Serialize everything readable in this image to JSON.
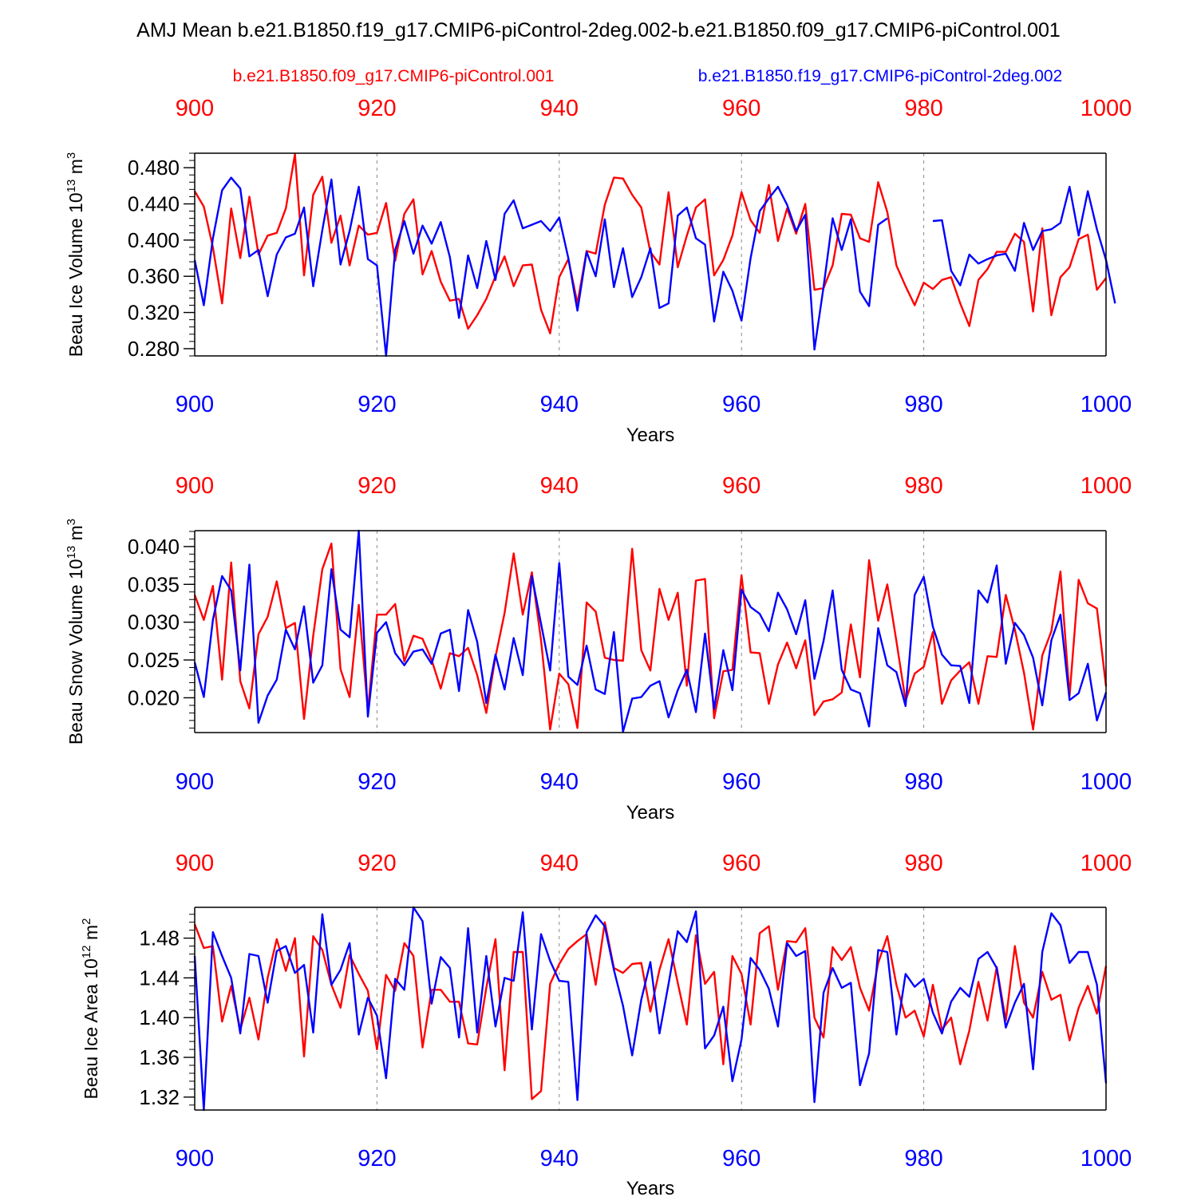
{
  "title": "AMJ Mean b.e21.B1850.f19_g17.CMIP6-piControl-2deg.002-b.e21.B1850.f09_g17.CMIP6-piControl.001",
  "legend": {
    "red_label": "b.e21.B1850.f09_g17.CMIP6-piControl.001",
    "blue_label": "b.e21.B1850.f19_g17.CMIP6-piControl-2deg.002"
  },
  "colors": {
    "red": "#ff0000",
    "blue": "#0000ff",
    "black": "#000000"
  },
  "chart_data": [
    {
      "type": "line",
      "ylabel": "Beau Ice Volume 10^13 m^3",
      "ylabel_main": "Beau Ice Volume 10",
      "ylabel_exp": "13",
      "ylabel_unit": "m",
      "ylabel_unit_exp": "3",
      "xlabel": "Years",
      "xlim": [
        900,
        1000
      ],
      "ylim": [
        0.272,
        0.496
      ],
      "x_ticks": [
        "900",
        "920",
        "940",
        "960",
        "980",
        "1000"
      ],
      "y_ticks": [
        "0.280",
        "0.320",
        "0.360",
        "0.400",
        "0.440",
        "0.480"
      ],
      "y_tick_values": [
        0.28,
        0.32,
        0.36,
        0.4,
        0.44,
        0.48
      ],
      "x_start": 900,
      "series": [
        {
          "name": "b.e21.B1850.f09_g17.CMIP6-piControl.001",
          "color": "red",
          "values": [
            0.454,
            0.437,
            0.392,
            0.33,
            0.435,
            0.38,
            0.448,
            0.384,
            0.405,
            0.408,
            0.435,
            0.495,
            0.361,
            0.45,
            0.47,
            0.397,
            0.427,
            0.372,
            0.416,
            0.406,
            0.408,
            0.441,
            0.377,
            0.429,
            0.445,
            0.362,
            0.388,
            0.354,
            0.333,
            0.335,
            0.302,
            0.317,
            0.335,
            0.36,
            0.382,
            0.349,
            0.372,
            0.373,
            0.323,
            0.297,
            0.359,
            0.379,
            0.33,
            0.388,
            0.385,
            0.439,
            0.469,
            0.468,
            0.45,
            0.436,
            0.387,
            0.373,
            0.453,
            0.37,
            0.405,
            0.436,
            0.445,
            0.361,
            0.378,
            0.405,
            0.453,
            0.422,
            0.408,
            0.461,
            0.399,
            0.435,
            0.407,
            0.44,
            0.345,
            0.347,
            0.372,
            0.429,
            0.428,
            0.402,
            0.398,
            0.464,
            0.431,
            0.372,
            0.349,
            0.328,
            0.353,
            0.346,
            0.356,
            0.359,
            0.33,
            0.305,
            0.356,
            0.368,
            0.387,
            0.387,
            0.407,
            0.398,
            0.321,
            0.413,
            0.317,
            0.359,
            0.37,
            0.401,
            0.406,
            0.345,
            0.358
          ]
        },
        {
          "name": "b.e21.B1850.f19_g17.CMIP6-piControl-2deg.002",
          "color": "blue",
          "values": [
            0.378,
            0.328,
            0.402,
            0.455,
            0.469,
            0.457,
            0.382,
            0.389,
            0.338,
            0.384,
            0.403,
            0.407,
            0.436,
            0.349,
            0.411,
            0.467,
            0.373,
            0.41,
            0.459,
            0.379,
            0.372,
            0.272,
            0.389,
            0.421,
            0.385,
            0.416,
            0.396,
            0.42,
            0.381,
            0.314,
            0.383,
            0.347,
            0.399,
            0.356,
            0.429,
            0.444,
            0.413,
            0.417,
            0.421,
            0.41,
            0.425,
            0.38,
            0.322,
            0.387,
            0.36,
            0.423,
            0.348,
            0.391,
            0.337,
            0.359,
            0.391,
            0.325,
            0.33,
            0.427,
            0.436,
            0.402,
            0.395,
            0.31,
            0.365,
            0.344,
            0.311,
            0.38,
            0.432,
            0.446,
            0.459,
            0.439,
            0.41,
            0.428,
            0.279,
            0.348,
            0.424,
            0.389,
            0.423,
            0.343,
            0.327,
            0.417,
            0.424,
            null,
            null,
            null,
            null,
            0.421,
            0.422,
            0.366,
            0.35,
            0.384,
            0.374,
            0.379,
            0.383,
            0.385,
            0.366,
            0.419,
            0.389,
            0.41,
            0.412,
            0.419,
            0.459,
            0.405,
            0.454,
            0.412,
            0.378,
            0.33
          ]
        }
      ]
    },
    {
      "type": "line",
      "ylabel": "Beau Snow Volume 10^13 m^3",
      "ylabel_main": "Beau Snow Volume 10",
      "ylabel_exp": "13",
      "ylabel_unit": "m",
      "ylabel_unit_exp": "3",
      "xlabel": "Years",
      "xlim": [
        900,
        1000
      ],
      "ylim": [
        0.0154,
        0.0421
      ],
      "x_ticks": [
        "900",
        "920",
        "940",
        "960",
        "980",
        "1000"
      ],
      "y_ticks": [
        "0.020",
        "0.025",
        "0.030",
        "0.035",
        "0.040"
      ],
      "y_tick_values": [
        0.02,
        0.025,
        0.03,
        0.035,
        0.04
      ],
      "x_start": 900,
      "series": [
        {
          "name": "b.e21.B1850.f09_g17.CMIP6-piControl.001",
          "color": "red",
          "values": [
            0.0336,
            0.0303,
            0.0348,
            0.0224,
            0.0379,
            0.0222,
            0.0186,
            0.0284,
            0.0307,
            0.0354,
            0.0292,
            0.0299,
            0.0172,
            0.0282,
            0.037,
            0.0404,
            0.0238,
            0.0201,
            0.0323,
            0.0183,
            0.031,
            0.031,
            0.0324,
            0.0248,
            0.0282,
            0.0278,
            0.025,
            0.0212,
            0.0259,
            0.0255,
            0.0266,
            0.023,
            0.018,
            0.0254,
            0.0312,
            0.0391,
            0.031,
            0.0366,
            0.0276,
            0.0158,
            0.0232,
            0.0218,
            0.016,
            0.0326,
            0.0314,
            0.0253,
            0.025,
            0.0249,
            0.0397,
            0.0263,
            0.0236,
            0.0344,
            0.0303,
            0.0339,
            0.0216,
            0.0355,
            0.0357,
            0.0173,
            0.0235,
            0.0237,
            0.0362,
            0.026,
            0.0259,
            0.0192,
            0.0244,
            0.0273,
            0.0239,
            0.0276,
            0.0177,
            0.0195,
            0.0198,
            0.0207,
            0.0297,
            0.0227,
            0.0382,
            0.0302,
            0.035,
            0.0275,
            0.0196,
            0.0232,
            0.0241,
            0.0287,
            0.0192,
            0.0223,
            0.0236,
            0.0247,
            0.0192,
            0.0255,
            0.0254,
            0.0336,
            0.029,
            0.0233,
            0.0158,
            0.0256,
            0.0288,
            0.0367,
            0.0202,
            0.0356,
            0.0325,
            0.0318,
            0.0215
          ]
        },
        {
          "name": "b.e21.B1850.f19_g17.CMIP6-piControl-2deg.002",
          "color": "blue",
          "values": [
            0.0247,
            0.0201,
            0.0303,
            0.0361,
            0.0342,
            0.0236,
            0.0376,
            0.0167,
            0.0203,
            0.0224,
            0.029,
            0.0264,
            0.0321,
            0.022,
            0.0243,
            0.037,
            0.029,
            0.028,
            0.0421,
            0.0175,
            0.0286,
            0.03,
            0.0259,
            0.0243,
            0.0261,
            0.0264,
            0.0245,
            0.0285,
            0.029,
            0.0209,
            0.0316,
            0.0274,
            0.0193,
            0.0257,
            0.0211,
            0.0279,
            0.023,
            0.0361,
            0.0298,
            0.0236,
            0.0378,
            0.0228,
            0.0217,
            0.0269,
            0.0211,
            0.0205,
            0.0287,
            0.0155,
            0.0199,
            0.0201,
            0.0216,
            0.0222,
            0.0174,
            0.021,
            0.0237,
            0.0181,
            0.0285,
            0.0185,
            0.0263,
            0.021,
            0.0343,
            0.032,
            0.0311,
            0.0288,
            0.0339,
            0.0317,
            0.0284,
            0.0329,
            0.0225,
            0.0275,
            0.0342,
            0.0237,
            0.0211,
            0.0206,
            0.0162,
            0.0292,
            0.0243,
            0.0234,
            0.0189,
            0.0336,
            0.036,
            0.0294,
            0.0257,
            0.0243,
            0.0242,
            0.0193,
            0.0342,
            0.0326,
            0.0375,
            0.0245,
            0.0299,
            0.0283,
            0.0253,
            0.019,
            0.0276,
            0.031,
            0.0197,
            0.0206,
            0.0245,
            0.017,
            0.0207
          ]
        }
      ]
    },
    {
      "type": "line",
      "ylabel": "Beau Ice Area 10^12 m^2",
      "ylabel_main": "Beau Ice Area 10",
      "ylabel_exp": "12",
      "ylabel_unit": "m",
      "ylabel_unit_exp": "2",
      "xlabel": "Years",
      "xlim": [
        900,
        1000
      ],
      "ylim": [
        1.307,
        1.511
      ],
      "x_ticks": [
        "900",
        "920",
        "940",
        "960",
        "980",
        "1000"
      ],
      "y_ticks": [
        "1.32",
        "1.36",
        "1.40",
        "1.44",
        "1.48"
      ],
      "y_tick_values": [
        1.32,
        1.36,
        1.4,
        1.44,
        1.48
      ],
      "x_start": 900,
      "series": [
        {
          "name": "b.e21.B1850.f09_g17.CMIP6-piControl.001",
          "color": "red",
          "values": [
            1.494,
            1.47,
            1.472,
            1.396,
            1.432,
            1.388,
            1.42,
            1.378,
            1.44,
            1.479,
            1.447,
            1.48,
            1.361,
            1.482,
            1.468,
            1.433,
            1.41,
            1.463,
            1.444,
            1.427,
            1.368,
            1.443,
            1.427,
            1.475,
            1.462,
            1.37,
            1.428,
            1.428,
            1.416,
            1.416,
            1.374,
            1.373,
            1.43,
            1.479,
            1.347,
            1.466,
            1.466,
            1.318,
            1.326,
            1.434,
            1.454,
            1.469,
            1.477,
            1.484,
            1.433,
            1.496,
            1.45,
            1.445,
            1.454,
            1.455,
            1.406,
            1.448,
            1.479,
            1.435,
            1.393,
            1.483,
            1.434,
            1.446,
            1.353,
            1.462,
            1.444,
            1.393,
            1.485,
            1.492,
            1.428,
            1.477,
            1.476,
            1.49,
            1.4,
            1.38,
            1.471,
            1.458,
            1.471,
            1.43,
            1.407,
            1.455,
            1.482,
            1.433,
            1.4,
            1.407,
            1.381,
            1.433,
            1.388,
            1.4,
            1.353,
            1.387,
            1.436,
            1.397,
            1.451,
            1.397,
            1.472,
            1.415,
            1.4,
            1.446,
            1.418,
            1.423,
            1.377,
            1.41,
            1.432,
            1.404,
            1.452
          ]
        },
        {
          "name": "b.e21.B1850.f19_g17.CMIP6-piControl-2deg.002",
          "color": "blue",
          "values": [
            1.462,
            1.307,
            1.486,
            1.462,
            1.44,
            1.384,
            1.464,
            1.462,
            1.415,
            1.467,
            1.472,
            1.445,
            1.453,
            1.385,
            1.504,
            1.433,
            1.448,
            1.475,
            1.383,
            1.42,
            1.402,
            1.339,
            1.439,
            1.428,
            1.511,
            1.497,
            1.414,
            1.461,
            1.45,
            1.38,
            1.49,
            1.385,
            1.462,
            1.391,
            1.44,
            1.437,
            1.506,
            1.388,
            1.484,
            1.457,
            1.437,
            1.436,
            1.317,
            1.486,
            1.503,
            1.492,
            1.448,
            1.412,
            1.362,
            1.418,
            1.456,
            1.384,
            1.434,
            1.487,
            1.476,
            1.507,
            1.369,
            1.382,
            1.411,
            1.336,
            1.378,
            1.46,
            1.448,
            1.429,
            1.391,
            1.475,
            1.462,
            1.467,
            1.315,
            1.425,
            1.45,
            1.43,
            1.435,
            1.332,
            1.364,
            1.468,
            1.466,
            1.383,
            1.444,
            1.431,
            1.439,
            1.405,
            1.384,
            1.416,
            1.43,
            1.421,
            1.459,
            1.466,
            1.45,
            1.39,
            1.415,
            1.434,
            1.348,
            1.466,
            1.505,
            1.493,
            1.455,
            1.466,
            1.466,
            1.433,
            1.334
          ]
        }
      ]
    }
  ]
}
